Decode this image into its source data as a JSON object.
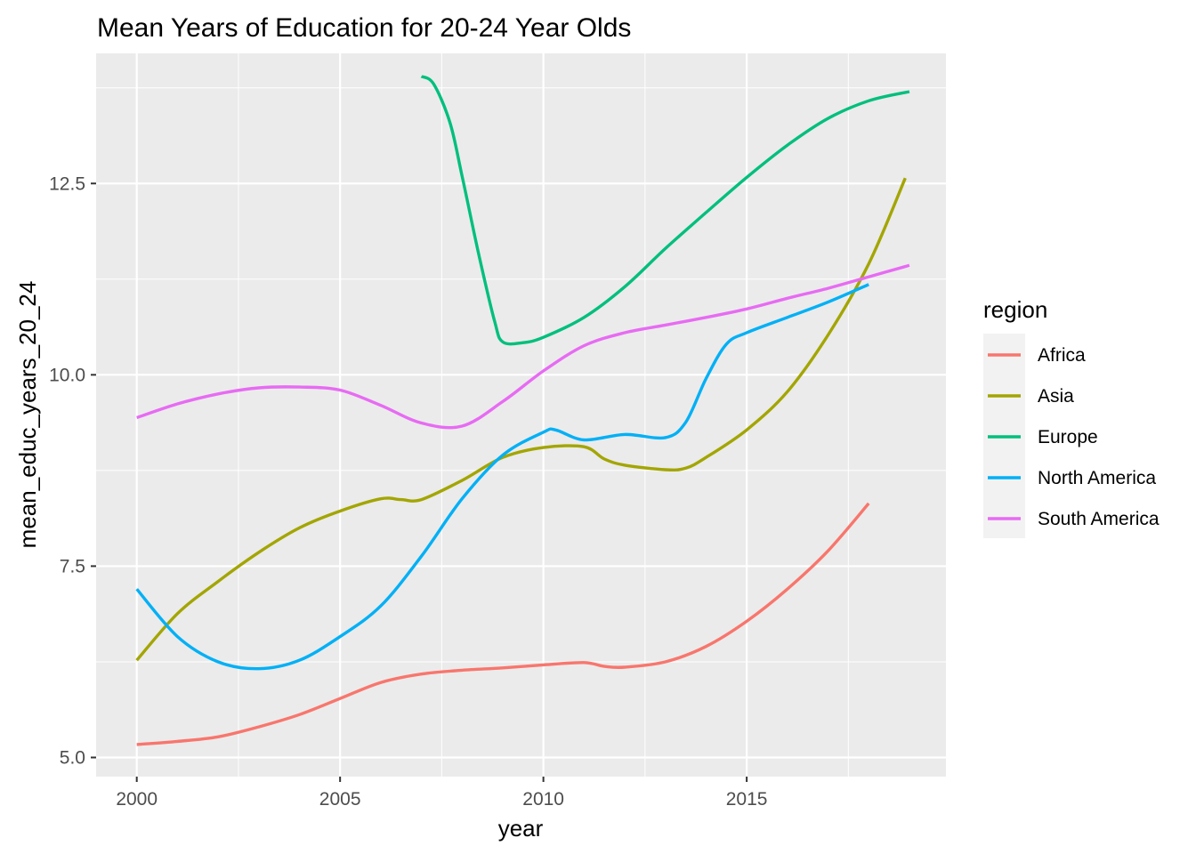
{
  "chart_data": {
    "type": "line",
    "title": "Mean Years of Education for 20-24 Year Olds",
    "xlabel": "year",
    "ylabel": "mean_educ_years_20_24",
    "xlim": [
      1999.0,
      2019.9
    ],
    "ylim": [
      4.75,
      14.2
    ],
    "x_ticks": [
      2000,
      2005,
      2010,
      2015
    ],
    "x_tick_labels": [
      "2000",
      "2005",
      "2010",
      "2015"
    ],
    "x_minor_ticks": [
      2002.5,
      2007.5,
      2012.5,
      2017.5
    ],
    "y_ticks": [
      5.0,
      7.5,
      10.0,
      12.5
    ],
    "y_tick_labels": [
      "5.0",
      "7.5",
      "10.0",
      "12.5"
    ],
    "y_minor_ticks": [
      6.25,
      8.75,
      11.25,
      13.75
    ],
    "grid": true,
    "legend": {
      "title": "region",
      "position": "right"
    },
    "series": [
      {
        "name": "Africa",
        "color": "#F8766D",
        "points": [
          [
            2000,
            5.17
          ],
          [
            2001,
            5.21
          ],
          [
            2002,
            5.27
          ],
          [
            2003,
            5.4
          ],
          [
            2004,
            5.56
          ],
          [
            2005,
            5.77
          ],
          [
            2006,
            5.98
          ],
          [
            2007,
            6.09
          ],
          [
            2008,
            6.14
          ],
          [
            2009,
            6.17
          ],
          [
            2010,
            6.21
          ],
          [
            2011,
            6.24
          ],
          [
            2011.5,
            6.19
          ],
          [
            2012,
            6.18
          ],
          [
            2013,
            6.25
          ],
          [
            2014,
            6.45
          ],
          [
            2015,
            6.78
          ],
          [
            2016,
            7.2
          ],
          [
            2017,
            7.7
          ],
          [
            2018,
            8.32
          ]
        ]
      },
      {
        "name": "Asia",
        "color": "#A3A500",
        "points": [
          [
            2000,
            6.27
          ],
          [
            2001,
            6.88
          ],
          [
            2002,
            7.3
          ],
          [
            2003,
            7.68
          ],
          [
            2004,
            8.0
          ],
          [
            2005,
            8.22
          ],
          [
            2006,
            8.38
          ],
          [
            2006.5,
            8.37
          ],
          [
            2007,
            8.37
          ],
          [
            2008,
            8.62
          ],
          [
            2009,
            8.92
          ],
          [
            2010,
            9.05
          ],
          [
            2011,
            9.06
          ],
          [
            2011.5,
            8.9
          ],
          [
            2012,
            8.82
          ],
          [
            2013,
            8.76
          ],
          [
            2013.5,
            8.78
          ],
          [
            2014,
            8.92
          ],
          [
            2015,
            9.28
          ],
          [
            2016,
            9.78
          ],
          [
            2017,
            10.52
          ],
          [
            2018,
            11.45
          ],
          [
            2018.9,
            12.57
          ]
        ]
      },
      {
        "name": "Europe",
        "color": "#00BF7D",
        "points": [
          [
            2007,
            13.9
          ],
          [
            2007.3,
            13.8
          ],
          [
            2007.7,
            13.3
          ],
          [
            2008,
            12.6
          ],
          [
            2008.4,
            11.6
          ],
          [
            2008.8,
            10.7
          ],
          [
            2009,
            10.43
          ],
          [
            2009.5,
            10.42
          ],
          [
            2010,
            10.49
          ],
          [
            2011,
            10.75
          ],
          [
            2012,
            11.15
          ],
          [
            2013,
            11.65
          ],
          [
            2014,
            12.12
          ],
          [
            2015,
            12.58
          ],
          [
            2016,
            13.0
          ],
          [
            2017,
            13.35
          ],
          [
            2018,
            13.58
          ],
          [
            2019,
            13.7
          ]
        ]
      },
      {
        "name": "North America",
        "color": "#00B0F6",
        "points": [
          [
            2000,
            7.2
          ],
          [
            2001,
            6.58
          ],
          [
            2002,
            6.25
          ],
          [
            2003,
            6.16
          ],
          [
            2004,
            6.27
          ],
          [
            2005,
            6.58
          ],
          [
            2006,
            6.98
          ],
          [
            2007,
            7.63
          ],
          [
            2008,
            8.38
          ],
          [
            2009,
            8.95
          ],
          [
            2010,
            9.25
          ],
          [
            2010.3,
            9.28
          ],
          [
            2011,
            9.15
          ],
          [
            2012,
            9.22
          ],
          [
            2013,
            9.18
          ],
          [
            2013.5,
            9.38
          ],
          [
            2014,
            9.95
          ],
          [
            2014.5,
            10.4
          ],
          [
            2015,
            10.55
          ],
          [
            2016,
            10.75
          ],
          [
            2017,
            10.95
          ],
          [
            2018,
            11.18
          ]
        ]
      },
      {
        "name": "South America",
        "color": "#E76BF3",
        "points": [
          [
            2000,
            9.44
          ],
          [
            2001,
            9.62
          ],
          [
            2002,
            9.75
          ],
          [
            2003,
            9.83
          ],
          [
            2004,
            9.84
          ],
          [
            2005,
            9.8
          ],
          [
            2006,
            9.6
          ],
          [
            2007,
            9.37
          ],
          [
            2008,
            9.33
          ],
          [
            2009,
            9.65
          ],
          [
            2010,
            10.05
          ],
          [
            2011,
            10.38
          ],
          [
            2012,
            10.55
          ],
          [
            2013,
            10.65
          ],
          [
            2014,
            10.75
          ],
          [
            2015,
            10.86
          ],
          [
            2016,
            11.0
          ],
          [
            2017,
            11.13
          ],
          [
            2018,
            11.28
          ],
          [
            2019,
            11.43
          ]
        ]
      }
    ]
  }
}
